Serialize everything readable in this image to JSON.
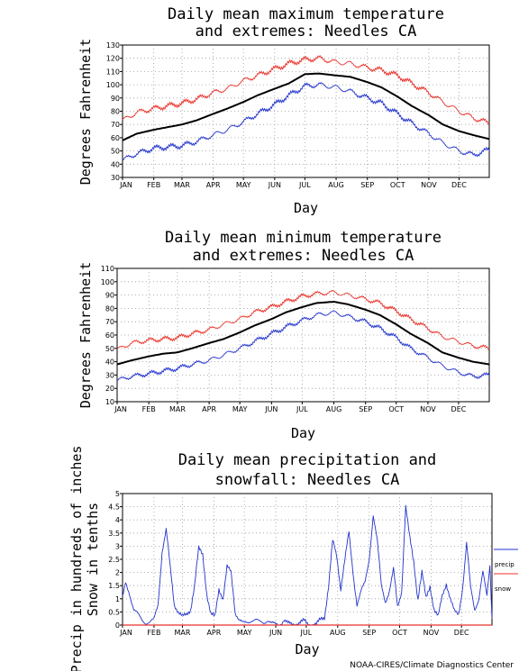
{
  "credit": "NOAA-CIRES/Climate Diagnostics Center",
  "legend": {
    "precip": "precip",
    "snow": "snow"
  },
  "colors": {
    "max": "#e8332a",
    "min": "#2233cc",
    "mean": "#000000",
    "precip": "#2233cc",
    "snow": "#e8332a",
    "grid": "#9a9a9a"
  },
  "chart_data": [
    {
      "type": "line",
      "title": [
        "Daily mean maximum temperature",
        "and extremes: Needles CA"
      ],
      "xlabel": "Day",
      "ylabel": "Degrees Fahrenheit",
      "ylim": [
        30,
        130
      ],
      "yticks": [
        30,
        40,
        50,
        60,
        70,
        80,
        90,
        100,
        110,
        120,
        130
      ],
      "months": [
        "JAN",
        "FEB",
        "MAR",
        "APR",
        "MAY",
        "JUN",
        "JUL",
        "AUG",
        "SEP",
        "OCT",
        "NOV",
        "DEC"
      ],
      "grid": true,
      "series": [
        {
          "key": "max",
          "x": [
            1,
            15,
            32,
            46,
            60,
            74,
            91,
            105,
            121,
            135,
            152,
            166,
            182,
            196,
            213,
            227,
            244,
            258,
            274,
            288,
            305,
            319,
            335,
            349,
            365
          ],
          "values": [
            73,
            79,
            82,
            84,
            86,
            89,
            94,
            97,
            103,
            107,
            112,
            116,
            119,
            120,
            117,
            116,
            113,
            111,
            107,
            101,
            94,
            87,
            80,
            75,
            71
          ]
        },
        {
          "key": "mean",
          "x": [
            1,
            15,
            32,
            46,
            60,
            74,
            91,
            105,
            121,
            135,
            152,
            166,
            182,
            196,
            213,
            227,
            244,
            258,
            274,
            288,
            305,
            319,
            335,
            349,
            365
          ],
          "values": [
            58,
            63,
            66,
            68,
            70,
            73,
            78,
            82,
            87,
            92,
            97,
            101,
            108,
            108.5,
            107,
            106,
            102,
            98,
            91,
            84,
            77,
            70,
            65,
            62,
            59
          ]
        },
        {
          "key": "min",
          "x": [
            1,
            15,
            32,
            46,
            60,
            74,
            91,
            105,
            121,
            135,
            152,
            166,
            182,
            196,
            213,
            227,
            244,
            258,
            274,
            288,
            305,
            319,
            335,
            349,
            365
          ],
          "values": [
            43,
            48,
            52,
            53,
            54,
            57,
            62,
            66,
            72,
            78,
            85,
            92,
            99,
            100,
            98,
            95,
            90,
            86,
            78,
            71,
            63,
            56,
            50,
            47,
            51
          ]
        }
      ]
    },
    {
      "type": "line",
      "title": [
        "Daily mean minimum temperature",
        "and extremes: Needles CA"
      ],
      "xlabel": "Day",
      "ylabel": "Degrees Fahrenheit",
      "ylim": [
        10,
        110
      ],
      "yticks": [
        10,
        20,
        30,
        40,
        50,
        60,
        70,
        80,
        90,
        100,
        110
      ],
      "months": [
        "JAN",
        "FEB",
        "MAR",
        "APR",
        "MAY",
        "JUN",
        "JUL",
        "AUG",
        "SEP",
        "OCT",
        "NOV",
        "DEC"
      ],
      "grid": true,
      "series": [
        {
          "key": "max",
          "x": [
            1,
            15,
            32,
            46,
            60,
            74,
            91,
            105,
            121,
            135,
            152,
            166,
            182,
            196,
            213,
            227,
            244,
            258,
            274,
            288,
            305,
            319,
            335,
            349,
            365
          ],
          "values": [
            49,
            54,
            56,
            57,
            58,
            61,
            64,
            68,
            72,
            77,
            81,
            85,
            89,
            91,
            92,
            90,
            87,
            84,
            78,
            72,
            65,
            59,
            55,
            52,
            50
          ]
        },
        {
          "key": "mean",
          "x": [
            1,
            15,
            32,
            46,
            60,
            74,
            91,
            105,
            121,
            135,
            152,
            166,
            182,
            196,
            213,
            227,
            244,
            258,
            274,
            288,
            305,
            319,
            335,
            349,
            365
          ],
          "values": [
            38,
            41,
            44,
            46,
            47,
            50,
            54,
            57,
            62,
            67,
            72,
            77,
            81,
            84,
            85,
            83,
            79,
            75,
            68,
            61,
            54,
            47,
            43,
            40,
            38
          ]
        },
        {
          "key": "min",
          "x": [
            1,
            15,
            32,
            46,
            60,
            74,
            91,
            105,
            121,
            135,
            152,
            166,
            182,
            196,
            213,
            227,
            244,
            258,
            274,
            288,
            305,
            319,
            335,
            349,
            365
          ],
          "values": [
            26,
            29,
            31,
            33,
            35,
            38,
            41,
            45,
            50,
            55,
            61,
            66,
            71,
            75,
            77,
            74,
            70,
            65,
            58,
            50,
            43,
            37,
            32,
            29,
            30
          ]
        }
      ]
    },
    {
      "type": "line",
      "title": [
        "Daily mean precipitation and",
        "snowfall: Needles CA"
      ],
      "xlabel": "Day",
      "ylabel": [
        "Precip in hundreds of inches",
        "Snow in tenths"
      ],
      "ylim": [
        0,
        5
      ],
      "yticks": [
        "0",
        "0.5",
        "1",
        "1.5",
        "2",
        "2.5",
        "3",
        "3.5",
        "4",
        "4.5",
        "5"
      ],
      "months": [
        "JAN",
        "FEB",
        "MAR",
        "APR",
        "MAY",
        "JUN",
        "JUL",
        "AUG",
        "SEP",
        "OCT",
        "NOV",
        "DEC"
      ],
      "grid": true,
      "series": [
        {
          "key": "precip",
          "x": [
            1,
            4,
            8,
            12,
            16,
            20,
            24,
            28,
            32,
            36,
            40,
            44,
            48,
            52,
            56,
            60,
            64,
            68,
            72,
            76,
            80,
            84,
            88,
            92,
            96,
            100,
            104,
            108,
            112,
            116,
            120,
            124,
            128,
            132,
            136,
            140,
            144,
            148,
            152,
            156,
            160,
            164,
            168,
            172,
            176,
            180,
            184,
            188,
            192,
            196,
            200,
            204,
            208,
            212,
            216,
            220,
            224,
            228,
            232,
            236,
            240,
            244,
            248,
            252,
            256,
            260,
            264,
            268,
            272,
            276,
            280,
            284,
            288,
            292,
            296,
            300,
            304,
            308,
            312,
            316,
            320,
            324,
            328,
            332,
            336,
            340,
            344,
            348,
            352,
            356,
            360,
            363,
            365
          ],
          "values": [
            1.0,
            1.6,
            1.2,
            0.6,
            0.4,
            0.2,
            0.1,
            0.1,
            0.2,
            0.8,
            2.8,
            3.6,
            2.2,
            0.8,
            0.5,
            0.3,
            0.4,
            0.6,
            1.5,
            2.9,
            2.7,
            1.2,
            0.4,
            0.3,
            1.4,
            1.0,
            2.2,
            2.0,
            0.5,
            0.2,
            0.05,
            0.1,
            0.2,
            0.2,
            0.1,
            0.1,
            0.2,
            0.05,
            0.02,
            0.02,
            0.2,
            0.05,
            0.02,
            0.05,
            0.1,
            0.15,
            0.02,
            0.02,
            0.02,
            0.2,
            0.3,
            1.5,
            3.2,
            2.6,
            1.4,
            2.5,
            3.5,
            2.0,
            0.8,
            1.3,
            1.6,
            2.5,
            4.2,
            3.2,
            1.5,
            0.9,
            1.3,
            2.1,
            0.7,
            1.3,
            4.5,
            3.3,
            2.4,
            1.0,
            2.0,
            1.0,
            1.5,
            0.6,
            0.3,
            1.1,
            1.6,
            1.0,
            0.5,
            0.4,
            1.4,
            3.1,
            1.4,
            0.6,
            1.0,
            2.0,
            1.1,
            2.3,
            0.3
          ]
        },
        {
          "key": "snow",
          "x": [
            1,
            365
          ],
          "values": [
            0.0,
            0.0
          ]
        }
      ]
    }
  ]
}
